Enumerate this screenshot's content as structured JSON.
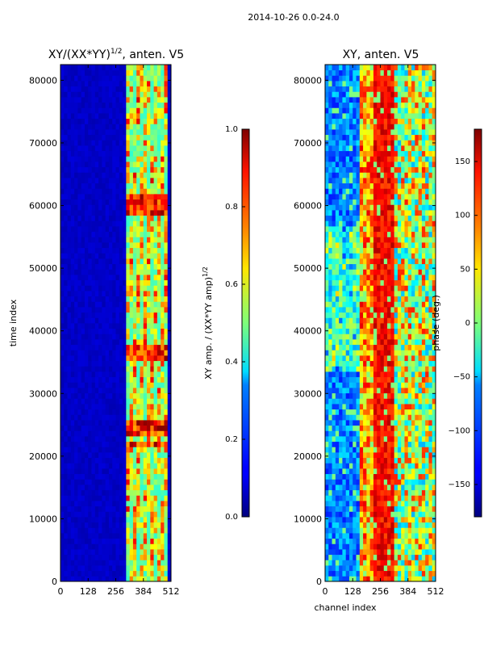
{
  "suptitle": "2014-10-26 0.0-24.0",
  "chart_data": [
    {
      "type": "heatmap",
      "title": "XY/(XX*YY)^1/2, anten. V5",
      "title_main": "XY/(XX*YY)",
      "title_sup": "1/2",
      "title_tail": ", anten. V5",
      "xlabel": "",
      "ylabel": "time index",
      "xlim": [
        0,
        512
      ],
      "ylim": [
        0,
        82500
      ],
      "xticks": [
        0,
        128,
        256,
        384,
        512
      ],
      "yticks": [
        0,
        10000,
        20000,
        30000,
        40000,
        50000,
        60000,
        70000,
        80000
      ],
      "colormap": "jet",
      "colorbar": {
        "label_main": "XY amp. / (XX*YY amp)",
        "label_sup": "1/2",
        "range": [
          0.0,
          1.0
        ],
        "ticks": [
          "0.0",
          "0.2",
          "0.4",
          "0.6",
          "0.8",
          "1.0"
        ]
      }
    },
    {
      "type": "heatmap",
      "title": "XY, anten. V5",
      "xlabel": "channel index",
      "ylabel": "",
      "xlim": [
        0,
        512
      ],
      "ylim": [
        0,
        82500
      ],
      "xticks": [
        0,
        128,
        256,
        384,
        512
      ],
      "yticks": [
        0,
        10000,
        20000,
        30000,
        40000,
        50000,
        60000,
        70000,
        80000
      ],
      "colormap": "jet",
      "colorbar": {
        "label": "phase (deg.)",
        "range": [
          -180,
          180
        ],
        "ticks": [
          "-150",
          "-100",
          "-50",
          "0",
          "50",
          "100",
          "150"
        ]
      }
    }
  ]
}
